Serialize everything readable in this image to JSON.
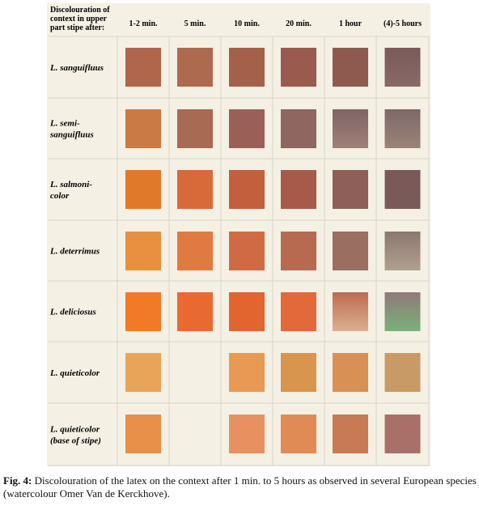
{
  "table": {
    "corner": [
      "Discolouration of",
      "context in upper",
      "part stipe after:"
    ],
    "columns": [
      "1-2 min.",
      "5 min.",
      "10 min.",
      "20 min.",
      "1 hour",
      "(4)-5 hours"
    ],
    "rows": [
      [
        "L. sanguifluus"
      ],
      [
        "L. semi-",
        "sanguifluus"
      ],
      [
        "L. salmoni-",
        "color"
      ],
      [
        "L. deterrimus"
      ],
      [
        "L. deliciosus"
      ],
      [
        "L. quieticolor"
      ],
      [
        "L. quieticolor",
        "(base of stipe)"
      ]
    ]
  },
  "caption": {
    "label": "Fig. 4:",
    "text": "Discolouration of the latex on the context after 1 min. to 5 hours as observed in several European species (watercolour Omer Van de Kerckhove)."
  }
}
